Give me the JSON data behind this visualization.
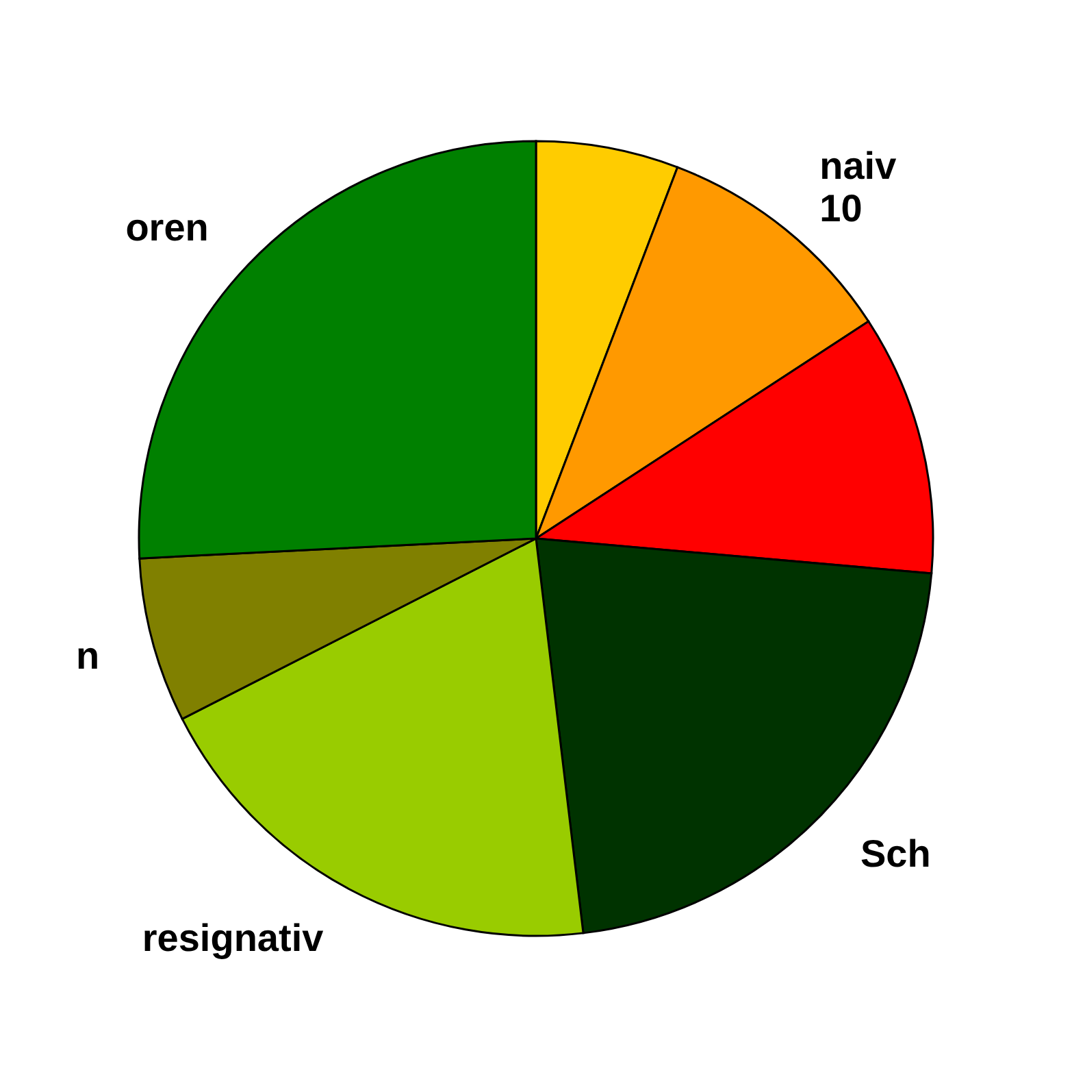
{
  "chart_data": {
    "type": "pie",
    "categories": [
      null,
      "naiv",
      null,
      "Sch",
      "resignativ",
      "n",
      "oren"
    ],
    "values": [
      5.8,
      10,
      10.6,
      21.7,
      19.4,
      6.7,
      25.8
    ],
    "colors": [
      "#ffcc00",
      "#ff9900",
      "#ff0000",
      "#003300",
      "#99cc00",
      "#808000",
      "#008000"
    ],
    "value_labels": [
      null,
      "10",
      null,
      null,
      null,
      null,
      null
    ]
  }
}
